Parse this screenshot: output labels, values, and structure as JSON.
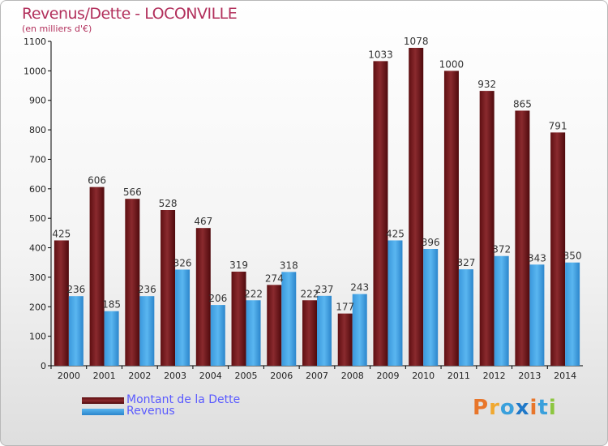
{
  "chart_data": {
    "type": "bar",
    "title": "Revenus/Dette - LOCONVILLE",
    "subtitle": "(en milliers d'€)",
    "categories": [
      "2000",
      "2001",
      "2002",
      "2003",
      "2004",
      "2005",
      "2006",
      "2007",
      "2008",
      "2009",
      "2010",
      "2011",
      "2012",
      "2013",
      "2014"
    ],
    "series": [
      {
        "name": "Montant de la Dette",
        "color": "#7a1a1e",
        "values": [
          425,
          606,
          566,
          528,
          467,
          319,
          274,
          222,
          177,
          1033,
          1078,
          1000,
          932,
          865,
          791
        ]
      },
      {
        "name": "Revenus",
        "color": "#3fa3e8",
        "values": [
          236,
          185,
          236,
          326,
          206,
          222,
          318,
          237,
          243,
          425,
          396,
          327,
          372,
          343,
          350
        ]
      }
    ],
    "ylim": [
      0,
      1100
    ],
    "yticks": [
      0,
      100,
      200,
      300,
      400,
      500,
      600,
      700,
      800,
      900,
      1000,
      1100
    ],
    "grid": false,
    "legend": "bottom-left"
  },
  "logo": {
    "text": "Proxiti",
    "letters": [
      {
        "ch": "P",
        "color": "#e8762b"
      },
      {
        "ch": "r",
        "color": "#f0a830"
      },
      {
        "ch": "o",
        "color": "#3aa0dc"
      },
      {
        "ch": "x",
        "color": "#1f78c8"
      },
      {
        "ch": "i",
        "color": "#e8762b"
      },
      {
        "ch": "t",
        "color": "#3aa0dc"
      },
      {
        "ch": "i",
        "color": "#8cc63f"
      }
    ]
  }
}
